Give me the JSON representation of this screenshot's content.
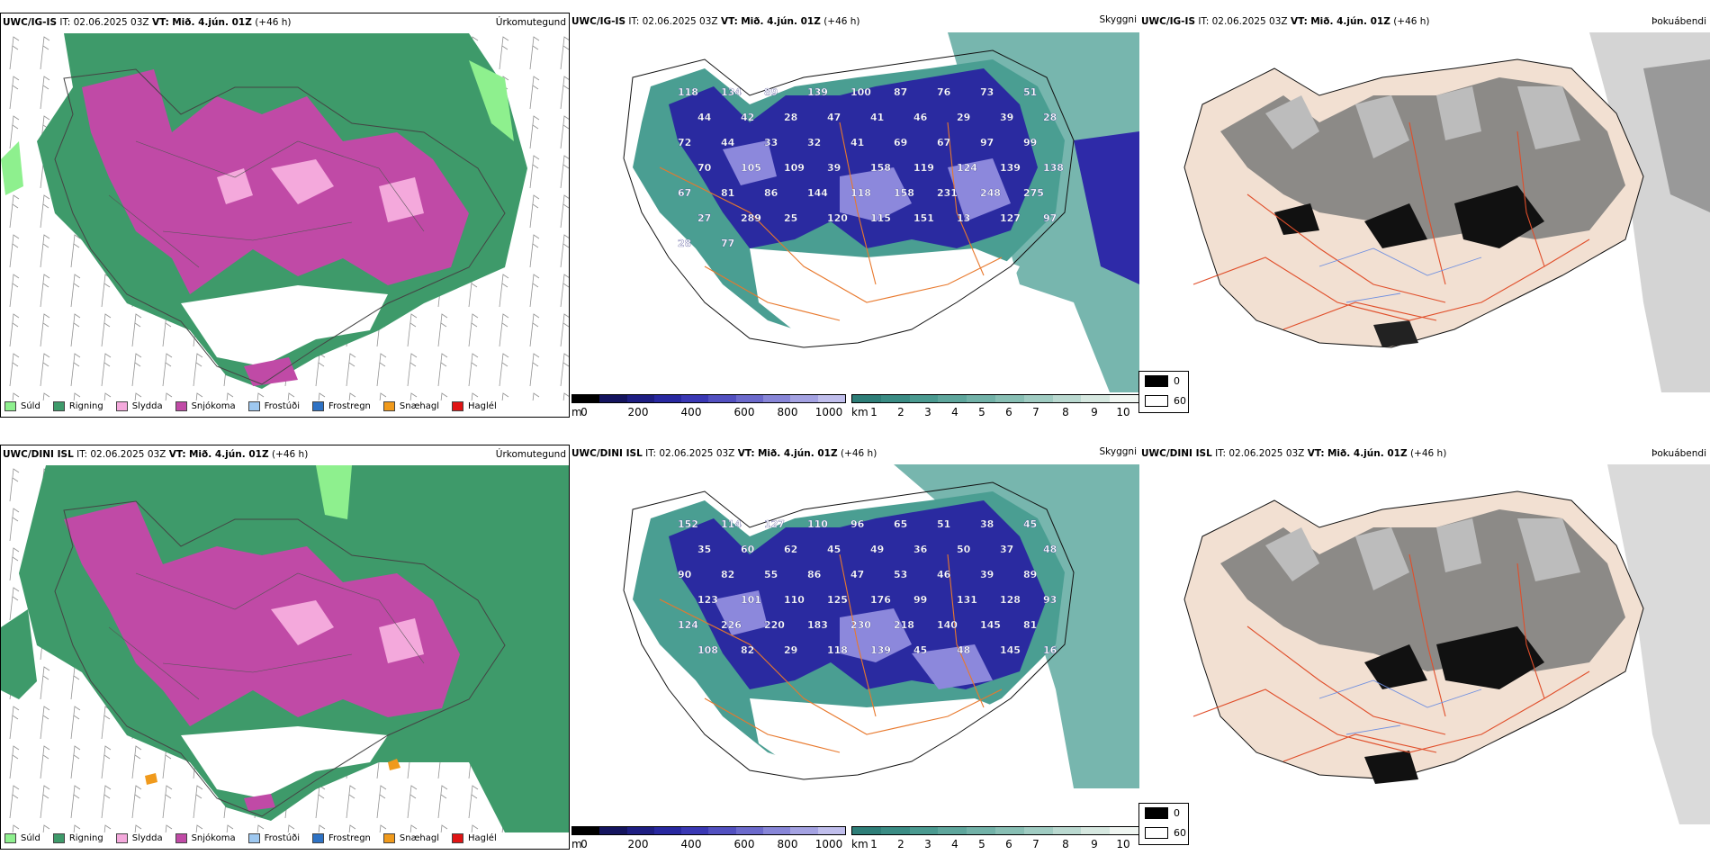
{
  "rows": [
    {
      "model": "UWC/IG-IS",
      "issue_time": "IT: 02.06.2025 03Z",
      "valid_label": "VT:",
      "valid_time": "Mið. 4.jún. 01Z",
      "lead": "(+46 h)",
      "panels": {
        "precip": {
          "variable": "Úrkomutegund"
        },
        "visibility": {
          "variable": "Skyggni",
          "labels": [
            "118",
            "134",
            "89",
            "139",
            "100",
            "87",
            "76",
            "73",
            "51",
            "44",
            "42",
            "28",
            "47",
            "41",
            "46",
            "29",
            "39",
            "28",
            "72",
            "44",
            "33",
            "32",
            "41",
            "69",
            "67",
            "97",
            "99",
            "70",
            "105",
            "109",
            "39",
            "158",
            "119",
            "124",
            "139",
            "138",
            "67",
            "81",
            "86",
            "144",
            "118",
            "158",
            "231",
            "248",
            "275",
            "27",
            "289",
            "25",
            "120",
            "115",
            "151",
            "13",
            "127",
            "97",
            "28",
            "77"
          ]
        }
      }
    },
    {
      "model": "UWC/DINI ISL",
      "issue_time": "IT: 02.06.2025 03Z",
      "valid_label": "VT:",
      "valid_time": "Mið. 4.jún. 01Z",
      "lead": "(+46 h)",
      "panels": {
        "precip": {
          "variable": "Úrkomutegund"
        },
        "visibility": {
          "variable": "Skyggni",
          "labels": [
            "152",
            "114",
            "127",
            "110",
            "96",
            "65",
            "51",
            "38",
            "45",
            "35",
            "60",
            "62",
            "45",
            "49",
            "36",
            "50",
            "37",
            "48",
            "90",
            "82",
            "55",
            "86",
            "47",
            "53",
            "46",
            "39",
            "89",
            "123",
            "101",
            "110",
            "125",
            "176",
            "99",
            "131",
            "128",
            "93",
            "124",
            "226",
            "220",
            "183",
            "230",
            "218",
            "140",
            "145",
            "81",
            "108",
            "82",
            "29",
            "118",
            "139",
            "45",
            "48",
            "145",
            "16"
          ]
        }
      }
    }
  ],
  "fog_panel_variable": "Þokuábendi",
  "precip_legend": [
    {
      "label": "Súld",
      "color": "#8ef08e"
    },
    {
      "label": "Rigning",
      "color": "#3e9a6a"
    },
    {
      "label": "Slydda",
      "color": "#f4a9dc"
    },
    {
      "label": "Snjókoma",
      "color": "#c04aa6"
    },
    {
      "label": "Frostúði",
      "color": "#9ec8f0"
    },
    {
      "label": "Frostregn",
      "color": "#2e72c4"
    },
    {
      "label": "Snæhagl",
      "color": "#f09a1c"
    },
    {
      "label": "Haglél",
      "color": "#e01414"
    }
  ],
  "ceiling_bar": {
    "unit": "m",
    "ticks": [
      "0",
      "200",
      "400",
      "600",
      "800",
      "1000"
    ]
  },
  "visibility_bar": {
    "unit": "km",
    "ticks": [
      "1",
      "2",
      "3",
      "4",
      "5",
      "6",
      "7",
      "8",
      "9",
      "10"
    ]
  },
  "fog_legend": {
    "black": "0",
    "white": "60"
  }
}
